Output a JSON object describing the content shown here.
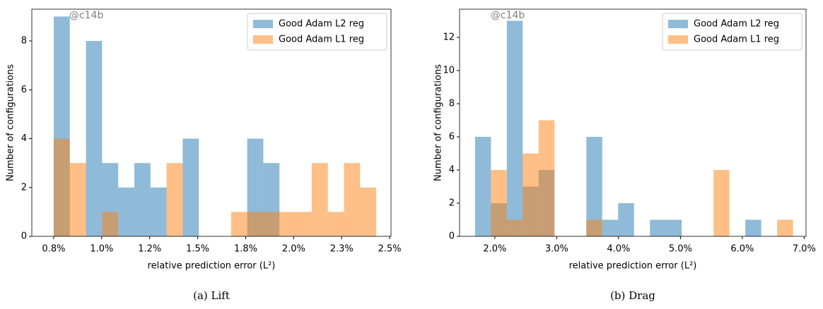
{
  "chart_data": [
    {
      "type": "histogram",
      "caption": "(a)  Lift",
      "watermark": "@c14b",
      "xlabel": "relative prediction error (L²)",
      "ylabel": "Number of configurations",
      "bins": [
        0.75,
        0.834,
        0.918,
        1.002,
        1.086,
        1.17,
        1.254,
        1.338,
        1.422,
        1.506,
        1.59,
        1.674,
        1.758,
        1.842,
        1.926,
        2.01,
        2.094,
        2.178,
        2.262,
        2.346,
        2.43
      ],
      "series": [
        {
          "name": "Good Adam L2 reg",
          "color": "#1f77b4",
          "values": [
            9,
            0,
            8,
            3,
            2,
            3,
            2,
            0,
            4,
            0,
            0,
            0,
            4,
            3,
            0,
            0,
            0,
            0,
            0,
            0
          ]
        },
        {
          "name": "Good Adam L1 reg",
          "color": "#ff7f0e",
          "values": [
            4,
            3,
            0,
            1,
            0,
            0,
            0,
            3,
            0,
            0,
            0,
            1,
            1,
            1,
            1,
            1,
            3,
            1,
            3,
            2
          ]
        }
      ],
      "xlim": [
        0.636,
        2.507
      ],
      "xticks": [
        {
          "value": 0.75,
          "label": "0.8%"
        },
        {
          "value": 1.0,
          "label": "1.0%"
        },
        {
          "value": 1.25,
          "label": "1.2%"
        },
        {
          "value": 1.5,
          "label": "1.5%"
        },
        {
          "value": 1.75,
          "label": "1.8%"
        },
        {
          "value": 2.0,
          "label": "2.0%"
        },
        {
          "value": 2.25,
          "label": "2.3%"
        },
        {
          "value": 2.5,
          "label": "2.5%"
        }
      ],
      "ylim": [
        0,
        9.3
      ],
      "yticks": [
        0,
        2,
        4,
        6,
        8
      ],
      "legend": "upper right",
      "opacity": 0.5
    },
    {
      "type": "histogram",
      "caption": "(b)  Drag",
      "watermark": "@c14b",
      "xlabel": "relative prediction error (L²)",
      "ylabel": "Number of configurations",
      "bins": [
        1.68,
        1.937,
        2.194,
        2.451,
        2.708,
        2.965,
        3.222,
        3.479,
        3.736,
        3.993,
        4.25,
        4.507,
        4.764,
        5.021,
        5.278,
        5.535,
        5.792,
        6.049,
        6.306,
        6.563,
        6.82
      ],
      "series": [
        {
          "name": "Good Adam L2 reg",
          "color": "#1f77b4",
          "values": [
            6,
            2,
            13,
            3,
            4,
            0,
            0,
            6,
            1,
            2,
            0,
            1,
            1,
            0,
            0,
            0,
            0,
            1,
            0,
            0
          ]
        },
        {
          "name": "Good Adam L1 reg",
          "color": "#ff7f0e",
          "values": [
            0,
            4,
            1,
            5,
            7,
            0,
            0,
            1,
            0,
            0,
            0,
            0,
            0,
            0,
            0,
            4,
            0,
            0,
            0,
            1
          ]
        }
      ],
      "xlim": [
        1.43,
        7.03
      ],
      "xticks": [
        {
          "value": 2.0,
          "label": "2.0%"
        },
        {
          "value": 3.0,
          "label": "3.0%"
        },
        {
          "value": 4.0,
          "label": "4.0%"
        },
        {
          "value": 5.0,
          "label": "5.0%"
        },
        {
          "value": 6.0,
          "label": "6.0%"
        },
        {
          "value": 7.0,
          "label": "7.0%"
        }
      ],
      "ylim": [
        0,
        13.7
      ],
      "yticks": [
        0,
        2,
        4,
        6,
        8,
        10,
        12
      ],
      "legend": "upper right",
      "opacity": 0.5
    }
  ]
}
